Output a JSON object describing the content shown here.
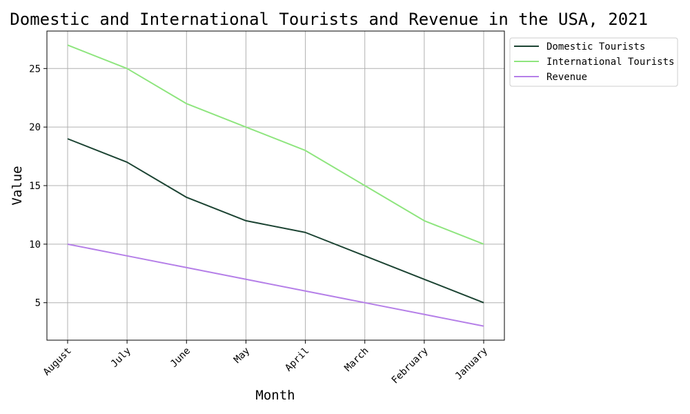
{
  "chart_data": {
    "type": "line",
    "title": "of Domestic and International Tourists and Revenue in the USA, 2021",
    "xlabel": "Month",
    "ylabel": "Value",
    "categories": [
      "August",
      "July",
      "June",
      "May",
      "April",
      "March",
      "February",
      "January"
    ],
    "series": [
      {
        "name": "Domestic Tourists",
        "color": "#1b4332",
        "values": [
          19,
          17,
          14,
          12,
          11,
          9,
          7,
          5
        ]
      },
      {
        "name": "International Tourists",
        "color": "#8ee57e",
        "values": [
          27,
          25,
          22,
          20,
          18,
          15,
          12,
          10
        ]
      },
      {
        "name": "Revenue",
        "color": "#b57fe8",
        "values": [
          10,
          9,
          8,
          7,
          6,
          5,
          4,
          3
        ]
      }
    ],
    "ylim": [
      1.8,
      28.2
    ],
    "yticks": [
      5,
      10,
      15,
      20,
      25
    ],
    "grid": true,
    "legend_position": "outside-top-right"
  }
}
